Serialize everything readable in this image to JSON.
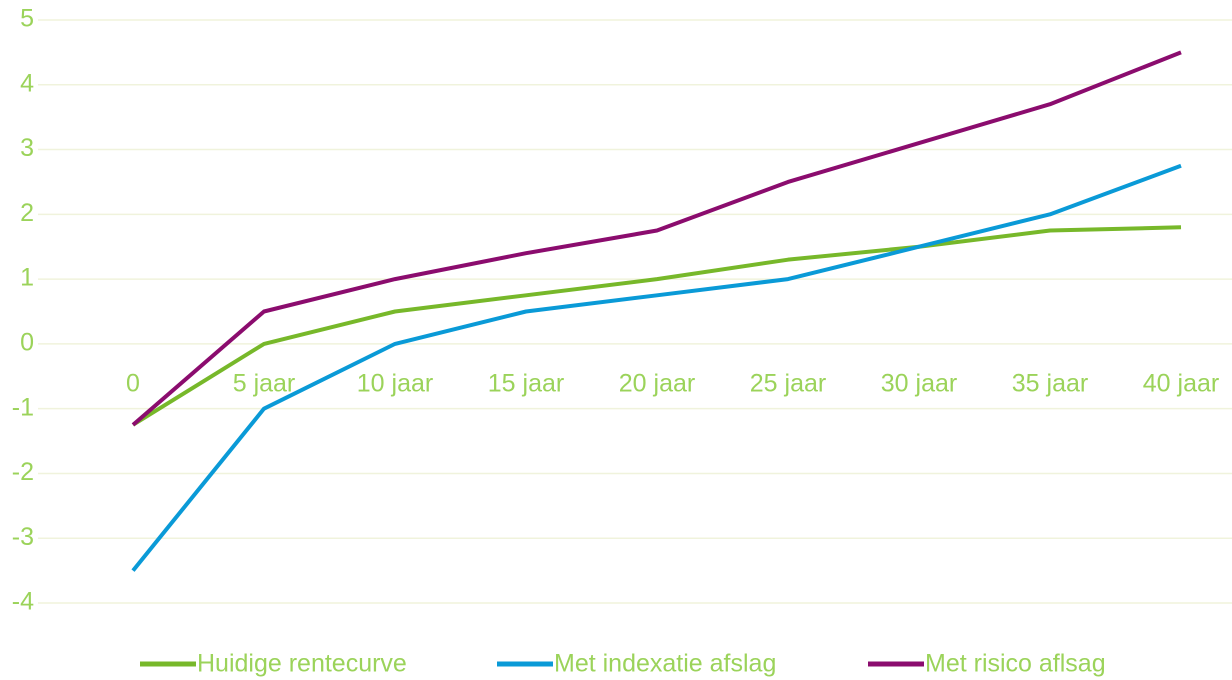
{
  "chart_data": {
    "type": "line",
    "categories": [
      "0",
      "5 jaar",
      "10 jaar",
      "15 jaar",
      "20 jaar",
      "25 jaar",
      "30 jaar",
      "35 jaar",
      "40 jaar"
    ],
    "series": [
      {
        "name": "Huidige rentecurve",
        "color": "#77b82a",
        "values": [
          -1.25,
          0,
          0.5,
          0.75,
          1.0,
          1.3,
          1.5,
          1.75,
          1.8
        ]
      },
      {
        "name": "Met indexatie afslag",
        "color": "#0a9ad7",
        "values": [
          -3.5,
          -1,
          0,
          0.5,
          0.75,
          1.0,
          1.5,
          2.0,
          2.75
        ]
      },
      {
        "name": "Met risico aflsag",
        "color": "#8b0c6e",
        "values": [
          -1.25,
          0.5,
          1.0,
          1.4,
          1.75,
          2.5,
          3.1,
          3.7,
          4.5
        ]
      }
    ],
    "ylim": [
      -4,
      5
    ],
    "yticks": [
      -4,
      -3,
      -2,
      -1,
      0,
      1,
      2,
      3,
      4,
      5
    ],
    "grid": true,
    "legend": "bottom"
  }
}
